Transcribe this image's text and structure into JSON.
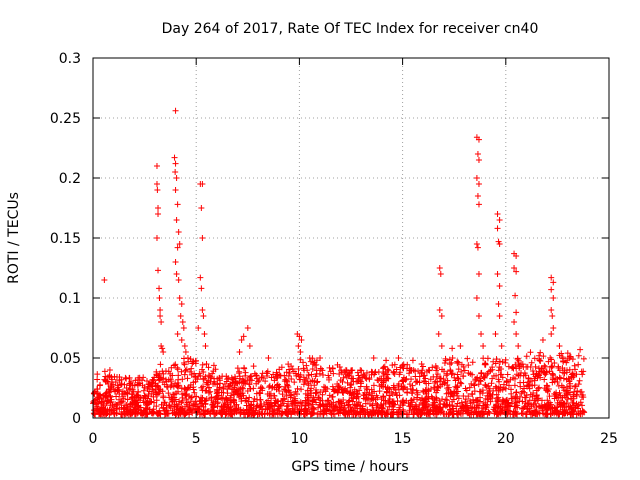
{
  "chart_data": {
    "type": "scatter",
    "title": "Day 264 of 2017, Rate Of TEC Index for receiver cn40",
    "xlabel": "GPS time / hours",
    "ylabel": "ROTI / TECUs",
    "xlim": [
      0,
      25
    ],
    "ylim": [
      0,
      0.3
    ],
    "grid": true,
    "marker": "+",
    "color": "#ff0000",
    "x_ticks": [
      0,
      5,
      10,
      15,
      20,
      25
    ],
    "x_tick_labels": [
      "0",
      "5",
      "10",
      "15",
      "20",
      "25"
    ],
    "y_ticks": [
      0,
      0.05,
      0.1,
      0.15,
      0.2,
      0.25,
      0.3
    ],
    "y_tick_labels": [
      "0",
      "0.05",
      "0.1",
      "0.15",
      "0.2",
      "0.25",
      "0.3"
    ],
    "series": [
      {
        "name": "ROTI",
        "points": [
          [
            0.55,
            0.115
          ],
          [
            3.1,
            0.21
          ],
          [
            3.1,
            0.195
          ],
          [
            3.12,
            0.19
          ],
          [
            3.15,
            0.175
          ],
          [
            3.15,
            0.17
          ],
          [
            3.1,
            0.15
          ],
          [
            3.15,
            0.123
          ],
          [
            3.2,
            0.108
          ],
          [
            3.22,
            0.1
          ],
          [
            3.25,
            0.09
          ],
          [
            3.25,
            0.085
          ],
          [
            3.3,
            0.08
          ],
          [
            3.3,
            0.06
          ],
          [
            3.35,
            0.058
          ],
          [
            3.4,
            0.055
          ],
          [
            4.0,
            0.256
          ],
          [
            3.95,
            0.217
          ],
          [
            4.0,
            0.212
          ],
          [
            3.98,
            0.205
          ],
          [
            4.05,
            0.2
          ],
          [
            4.0,
            0.19
          ],
          [
            4.1,
            0.178
          ],
          [
            4.05,
            0.165
          ],
          [
            4.15,
            0.155
          ],
          [
            4.2,
            0.145
          ],
          [
            4.1,
            0.142
          ],
          [
            4.0,
            0.13
          ],
          [
            4.05,
            0.12
          ],
          [
            4.15,
            0.115
          ],
          [
            4.2,
            0.1
          ],
          [
            4.3,
            0.095
          ],
          [
            4.25,
            0.085
          ],
          [
            4.35,
            0.08
          ],
          [
            4.4,
            0.075
          ],
          [
            4.1,
            0.07
          ],
          [
            4.3,
            0.065
          ],
          [
            4.45,
            0.06
          ],
          [
            4.5,
            0.055
          ],
          [
            4.6,
            0.05
          ],
          [
            5.2,
            0.195
          ],
          [
            5.3,
            0.195
          ],
          [
            5.25,
            0.175
          ],
          [
            5.3,
            0.15
          ],
          [
            5.2,
            0.117
          ],
          [
            5.25,
            0.108
          ],
          [
            5.3,
            0.09
          ],
          [
            5.35,
            0.085
          ],
          [
            5.1,
            0.075
          ],
          [
            5.4,
            0.07
          ],
          [
            5.45,
            0.06
          ],
          [
            5.5,
            0.045
          ],
          [
            7.2,
            0.065
          ],
          [
            7.3,
            0.068
          ],
          [
            7.5,
            0.075
          ],
          [
            7.6,
            0.06
          ],
          [
            7.1,
            0.055
          ],
          [
            8.5,
            0.05
          ],
          [
            9.9,
            0.07
          ],
          [
            10.0,
            0.068
          ],
          [
            10.1,
            0.065
          ],
          [
            9.95,
            0.06
          ],
          [
            10.05,
            0.055
          ],
          [
            10.5,
            0.05
          ],
          [
            11.0,
            0.05
          ],
          [
            13.6,
            0.05
          ],
          [
            14.2,
            0.048
          ],
          [
            14.8,
            0.05
          ],
          [
            15.5,
            0.048
          ],
          [
            16.8,
            0.125
          ],
          [
            16.85,
            0.12
          ],
          [
            16.8,
            0.09
          ],
          [
            16.9,
            0.085
          ],
          [
            16.75,
            0.07
          ],
          [
            16.9,
            0.06
          ],
          [
            17.4,
            0.058
          ],
          [
            17.8,
            0.06
          ],
          [
            18.6,
            0.234
          ],
          [
            18.7,
            0.232
          ],
          [
            18.65,
            0.22
          ],
          [
            18.7,
            0.215
          ],
          [
            18.6,
            0.2
          ],
          [
            18.7,
            0.195
          ],
          [
            18.65,
            0.185
          ],
          [
            18.7,
            0.178
          ],
          [
            18.6,
            0.145
          ],
          [
            18.65,
            0.142
          ],
          [
            18.7,
            0.12
          ],
          [
            18.6,
            0.1
          ],
          [
            18.7,
            0.085
          ],
          [
            18.8,
            0.07
          ],
          [
            18.9,
            0.06
          ],
          [
            19.6,
            0.17
          ],
          [
            19.7,
            0.165
          ],
          [
            19.6,
            0.158
          ],
          [
            19.65,
            0.147
          ],
          [
            19.7,
            0.145
          ],
          [
            19.6,
            0.12
          ],
          [
            19.7,
            0.11
          ],
          [
            19.65,
            0.095
          ],
          [
            19.7,
            0.085
          ],
          [
            19.5,
            0.07
          ],
          [
            19.8,
            0.06
          ],
          [
            20.4,
            0.137
          ],
          [
            20.5,
            0.135
          ],
          [
            20.4,
            0.125
          ],
          [
            20.5,
            0.122
          ],
          [
            20.45,
            0.102
          ],
          [
            20.5,
            0.088
          ],
          [
            20.4,
            0.08
          ],
          [
            20.5,
            0.07
          ],
          [
            20.6,
            0.06
          ],
          [
            22.2,
            0.117
          ],
          [
            22.3,
            0.113
          ],
          [
            22.2,
            0.107
          ],
          [
            22.3,
            0.1
          ],
          [
            22.2,
            0.09
          ],
          [
            22.25,
            0.085
          ],
          [
            22.3,
            0.075
          ],
          [
            22.2,
            0.07
          ],
          [
            21.8,
            0.065
          ],
          [
            22.6,
            0.06
          ],
          [
            23.6,
            0.057
          ]
        ]
      }
    ],
    "background_band": {
      "description": "dense cloud of ROTI values per hour",
      "x_range": [
        0,
        23.8
      ],
      "hourly_baseline_max": [
        0.04,
        0.035,
        0.035,
        0.045,
        0.05,
        0.045,
        0.035,
        0.045,
        0.04,
        0.045,
        0.05,
        0.045,
        0.04,
        0.04,
        0.045,
        0.045,
        0.045,
        0.05,
        0.05,
        0.05,
        0.05,
        0.055,
        0.055,
        0.055
      ],
      "y_min": 0.003
    }
  }
}
